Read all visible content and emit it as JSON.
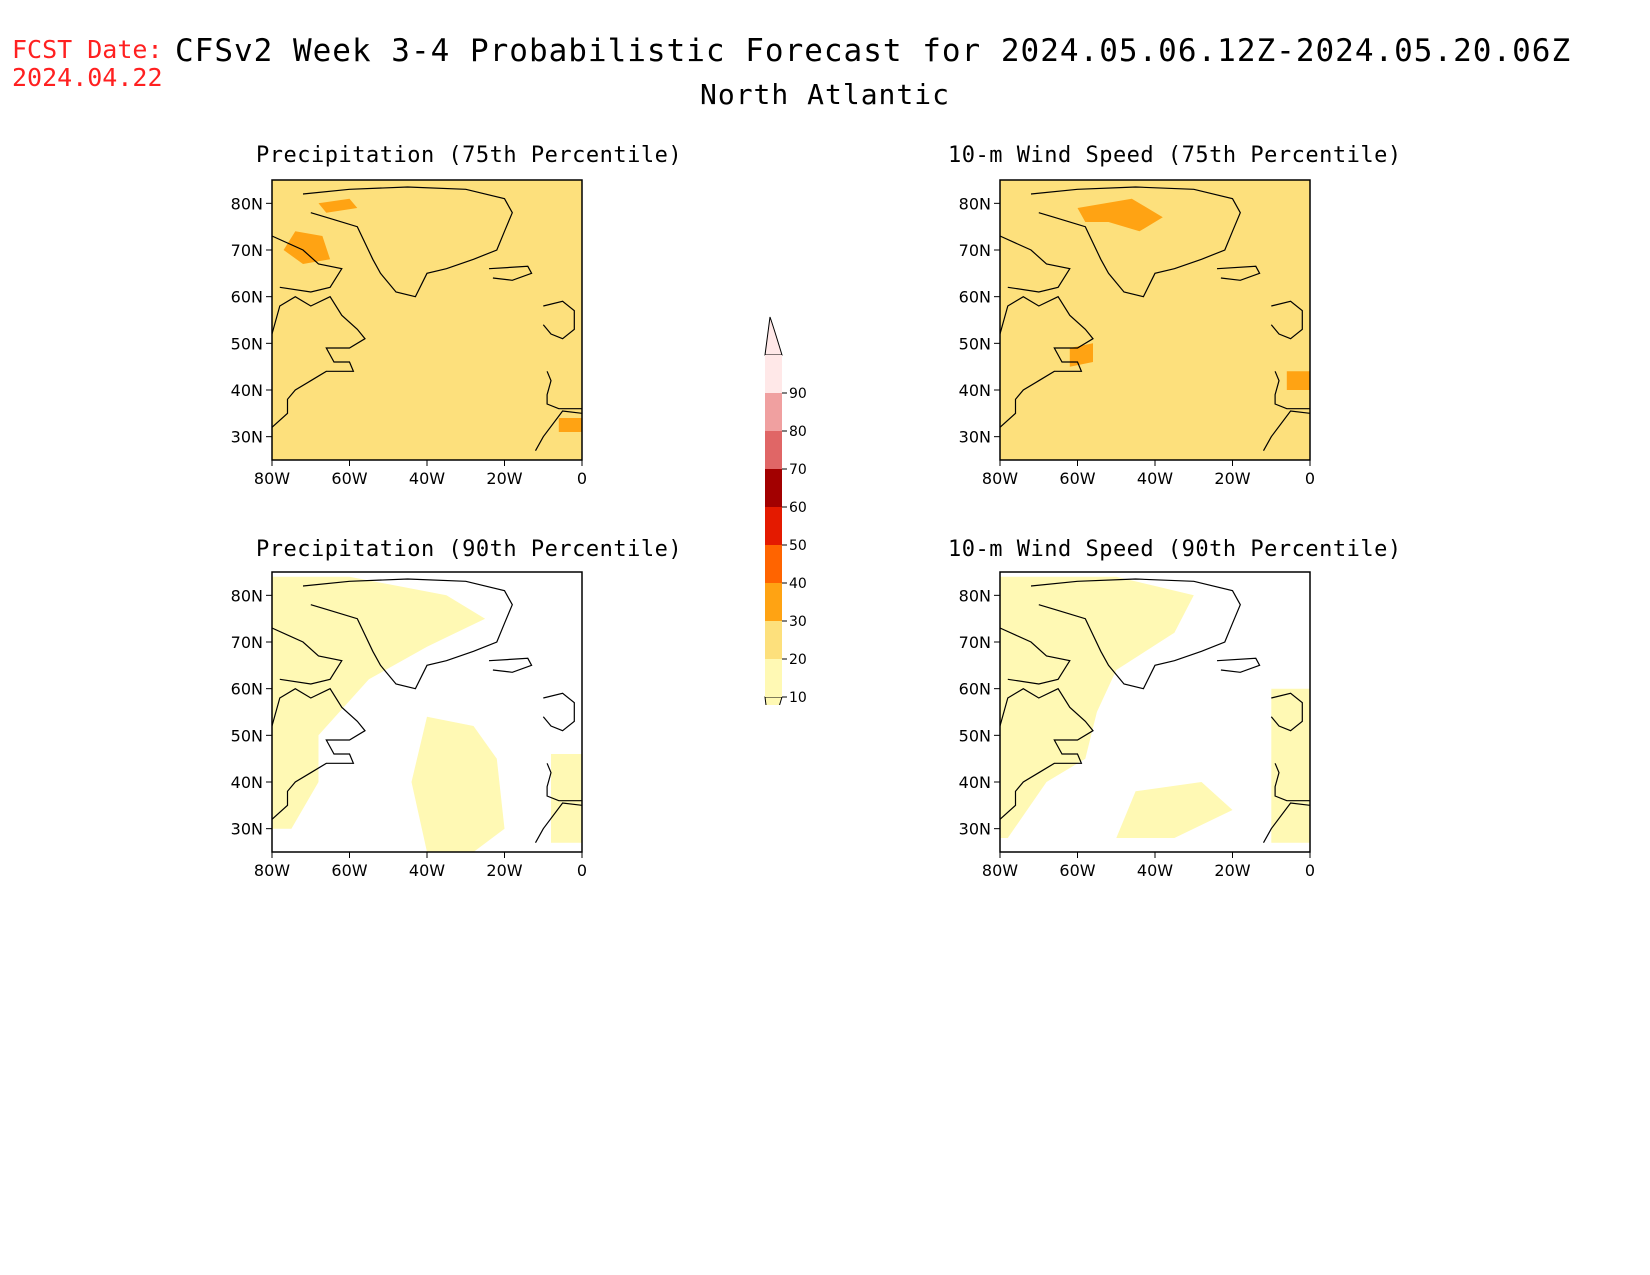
{
  "header": {
    "fcst_label": "FCST Date:",
    "fcst_date": "2024.04.22",
    "title": "CFSv2 Week 3-4 Probabilistic Forecast for 2024.05.06.12Z-2024.05.20.06Z",
    "subtitle": "North Atlantic"
  },
  "axes": {
    "lon_ticks": [
      "80W",
      "60W",
      "40W",
      "20W",
      "0"
    ],
    "lat_ticks": [
      "80N",
      "70N",
      "60N",
      "50N",
      "40N",
      "30N"
    ]
  },
  "panels": [
    {
      "id": "precip-75",
      "title": "Precipitation (75th Percentile)",
      "base_class": 2
    },
    {
      "id": "wind-75",
      "title": "10-m Wind Speed (75th Percentile)",
      "base_class": 2
    },
    {
      "id": "precip-90",
      "title": "Precipitation (90th Percentile)",
      "base_class": 0
    },
    {
      "id": "wind-90",
      "title": "10-m Wind Speed (90th Percentile)",
      "base_class": 0
    }
  ],
  "colorbar": {
    "labels": [
      "10",
      "20",
      "30",
      "40",
      "50",
      "60",
      "70",
      "80",
      "90"
    ],
    "colors": [
      "#fff9b4",
      "#fde07c",
      "#ffa313",
      "#ff6400",
      "#e41a00",
      "#a20000",
      "#e06666",
      "#f0a0a0",
      "#ffe8e8"
    ]
  },
  "map_region": {
    "lon_range": [
      -80,
      0
    ],
    "lat_range": [
      25,
      85
    ]
  }
}
